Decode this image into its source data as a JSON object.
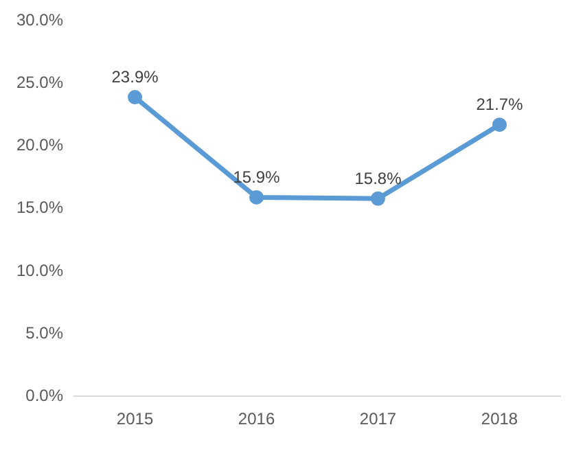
{
  "chart_data": {
    "type": "line",
    "categories": [
      "2015",
      "2016",
      "2017",
      "2018"
    ],
    "series": [
      {
        "color": "#5b9bd5",
        "values": [
          23.9,
          15.9,
          15.8,
          21.7
        ],
        "value_labels": [
          "23.9%",
          "15.9%",
          "15.8%",
          "21.7%"
        ]
      }
    ],
    "ylim": [
      0,
      30
    ],
    "yticks": [
      {
        "value": 0,
        "label": "0.0%"
      },
      {
        "value": 5,
        "label": "5.0%"
      },
      {
        "value": 10,
        "label": "10.0%"
      },
      {
        "value": 15,
        "label": "15.0%"
      },
      {
        "value": 20,
        "label": "20.0%"
      },
      {
        "value": 25,
        "label": "25.0%"
      },
      {
        "value": 30,
        "label": "30.0%"
      }
    ],
    "marker": "circle",
    "line_style": "solid",
    "legend": false
  }
}
